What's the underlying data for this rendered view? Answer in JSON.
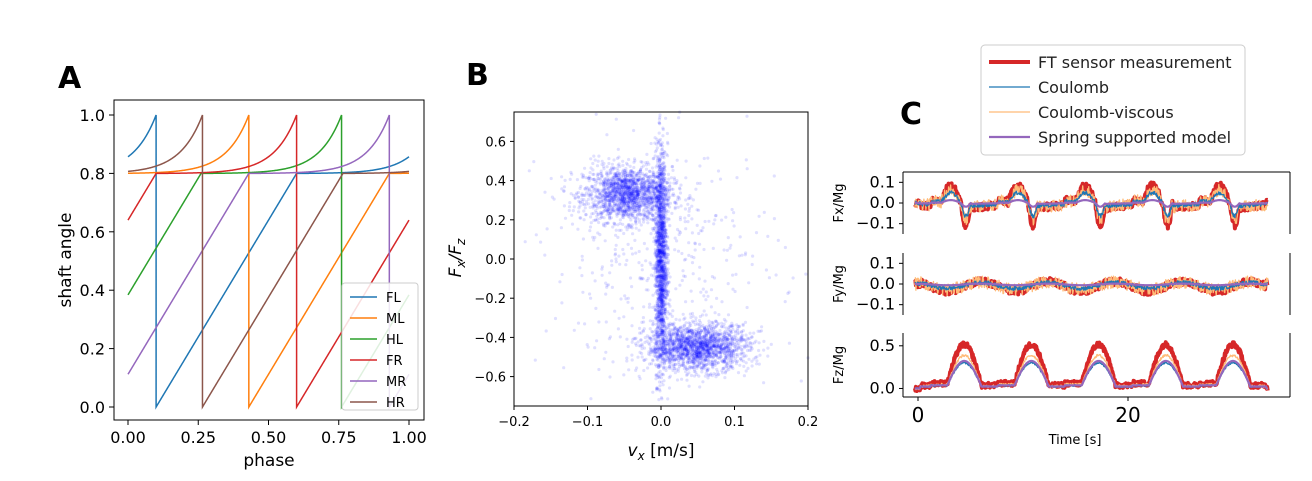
{
  "panel_letters": {
    "a": "A",
    "b": "B",
    "c": "C"
  },
  "chart_data": [
    {
      "panel": "A",
      "type": "line",
      "xlabel": "phase",
      "ylabel": "shaft angle",
      "xlim": [
        0,
        1
      ],
      "ylim": [
        0,
        1
      ],
      "xticks": [
        "0.00",
        "0.25",
        "0.50",
        "0.75",
        "1.00"
      ],
      "yticks": [
        "0.0",
        "0.2",
        "0.4",
        "0.6",
        "0.8",
        "1.0"
      ],
      "legend_position": "lower-right",
      "series": [
        {
          "name": "FL",
          "color": "#1f77b4",
          "phase_offset": 0.1
        },
        {
          "name": "ML",
          "color": "#ff7f0e",
          "phase_offset": 0.43
        },
        {
          "name": "HL",
          "color": "#2ca02c",
          "phase_offset": 0.76
        },
        {
          "name": "FR",
          "color": "#d62728",
          "phase_offset": 0.6
        },
        {
          "name": "MR",
          "color": "#9467bd",
          "phase_offset": 0.93
        },
        {
          "name": "HR",
          "color": "#8c564b",
          "phase_offset": 0.265
        }
      ],
      "stance_fraction": 0.5,
      "stance_level": 0.8,
      "swing_low": 0.0,
      "swing_high": 1.0
    },
    {
      "panel": "B",
      "type": "scatter",
      "xlabel": "v_x [m/s]",
      "ylabel": "F_x/F_z",
      "xlim": [
        -0.2,
        0.2
      ],
      "ylim": [
        -0.75,
        0.75
      ],
      "xticks": [
        "−0.2",
        "−0.1",
        "0.0",
        "0.1",
        "0.2"
      ],
      "yticks": [
        "0.6",
        "0.4",
        "0.2",
        "0.0",
        "−0.2",
        "−0.4",
        "−0.6"
      ],
      "color": "#0000ff",
      "clusters": [
        {
          "x": -0.045,
          "y": 0.33,
          "sx": 0.03,
          "sy": 0.07,
          "n": 1600
        },
        {
          "x": 0.0,
          "y": 0.0,
          "sx": 0.004,
          "sy": 0.28,
          "n": 1500
        },
        {
          "x": 0.05,
          "y": -0.45,
          "sx": 0.035,
          "sy": 0.06,
          "n": 1700
        },
        {
          "x": 0.0,
          "y": 0.0,
          "sx": 0.08,
          "sy": 0.3,
          "n": 400
        }
      ]
    },
    {
      "panel": "C",
      "type": "line",
      "xlabel": "Time [s]",
      "xlim": [
        -1.5,
        35
      ],
      "xticks": [
        "0",
        "20"
      ],
      "legend_position": "top",
      "series": [
        {
          "name": "FT sensor measurement",
          "color": "#d62728",
          "width": 4
        },
        {
          "name": "Coulomb",
          "color": "#1f77b4",
          "width": 1.3
        },
        {
          "name": "Coulomb-viscous",
          "color": "#ffbb78",
          "width": 1.3
        },
        {
          "name": "Spring supported model",
          "color": "#9467bd",
          "width": 2.2
        }
      ],
      "subplots": [
        {
          "ylabel": "Fx/Mg",
          "yticks": [
            "0.1",
            "0.0",
            "−0.1"
          ],
          "ylim": [
            -0.15,
            0.15
          ]
        },
        {
          "ylabel": "Fy/Mg",
          "yticks": [
            "0.1",
            "0.0",
            "−0.1"
          ],
          "ylim": [
            -0.15,
            0.15
          ]
        },
        {
          "ylabel": "Fz/Mg",
          "yticks": [
            "0.5",
            "0.0"
          ],
          "ylim": [
            -0.1,
            0.65
          ]
        }
      ]
    }
  ]
}
